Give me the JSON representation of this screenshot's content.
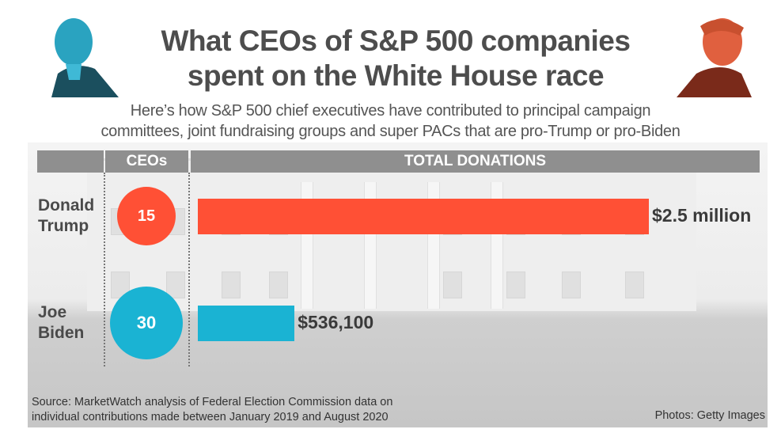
{
  "title_line1": "What CEOs of S&P 500 companies",
  "title_line2": "spent on the White House race",
  "subtitle_line1": "Here’s how S&P 500 chief executives have contributed to principal campaign",
  "subtitle_line2": "committees, joint fundraising groups and super PACs that are pro-Trump or pro-Biden",
  "portraits": {
    "left": "biden-portrait",
    "right": "trump-portrait"
  },
  "chart_data": {
    "type": "bar",
    "orientation": "horizontal",
    "column_headers": {
      "ceos": "CEOs",
      "donations": "TOTAL DONATIONS"
    },
    "categories": [
      "Donald Trump",
      "Joe Biden"
    ],
    "rows": [
      {
        "name_line1": "Donald",
        "name_line2": "Trump",
        "ceos": 15,
        "ceos_label": "15",
        "donations": 2500000,
        "donations_label": "$2.5 million",
        "color": "#ff5035"
      },
      {
        "name_line1": "Joe",
        "name_line2": "Biden",
        "ceos": 30,
        "ceos_label": "30",
        "donations": 536100,
        "donations_label": "$536,100",
        "color": "#1ab3d3"
      }
    ]
  },
  "source_line1": "Source: MarketWatch analysis of Federal Election Commission data on",
  "source_line2": "individual contributions made between January 2019 and August 2020",
  "photo_credit": "Photos: Getty Images"
}
